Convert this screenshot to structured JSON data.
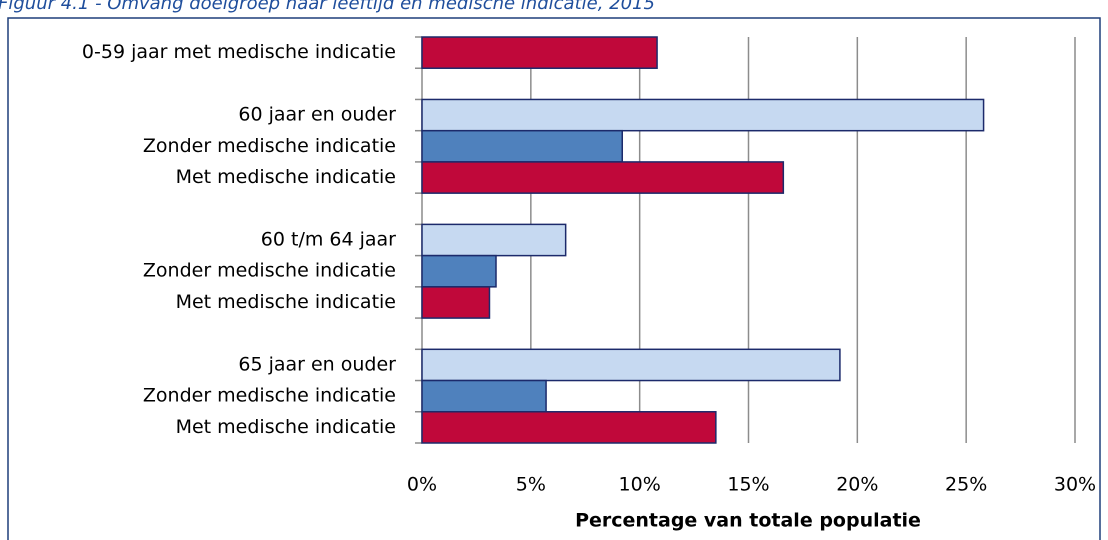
{
  "chart_data": {
    "type": "hbar",
    "title": "Figuur 4.1 - Omvang doelgroep naar leeftijd en medische indicatie, 2015",
    "x_label": "Percentage van totale populatie",
    "categories": [
      "0-59 jaar met medische indicatie",
      null,
      "60 jaar en ouder",
      "Zonder medische indicatie",
      "Met medische indicatie",
      null,
      "60 t/m 64 jaar",
      "Zonder medische indicatie",
      "Met medische indicatie",
      null,
      "65 jaar en ouder",
      "Zonder medische indicatie",
      "Met medische indicatie"
    ],
    "values": [
      10.8,
      null,
      25.8,
      9.2,
      16.6,
      null,
      6.6,
      3.4,
      3.1,
      null,
      19.2,
      5.7,
      13.5
    ],
    "colors": [
      "#c0083a",
      null,
      "#c6d9f1",
      "#4f81bd",
      "#c0083a",
      null,
      "#c6d9f1",
      "#4f81bd",
      "#c0083a",
      null,
      "#c6d9f1",
      "#4f81bd",
      "#c0083a"
    ],
    "xlim": [
      0,
      30
    ],
    "xticks": [
      {
        "value": 0,
        "label": "0%"
      },
      {
        "value": 5,
        "label": "5%"
      },
      {
        "value": 10,
        "label": "10%"
      },
      {
        "value": 15,
        "label": "15%"
      },
      {
        "value": 20,
        "label": "20%"
      },
      {
        "value": 25,
        "label": "25%"
      },
      {
        "value": 30,
        "label": "30%"
      }
    ],
    "grid": true
  }
}
